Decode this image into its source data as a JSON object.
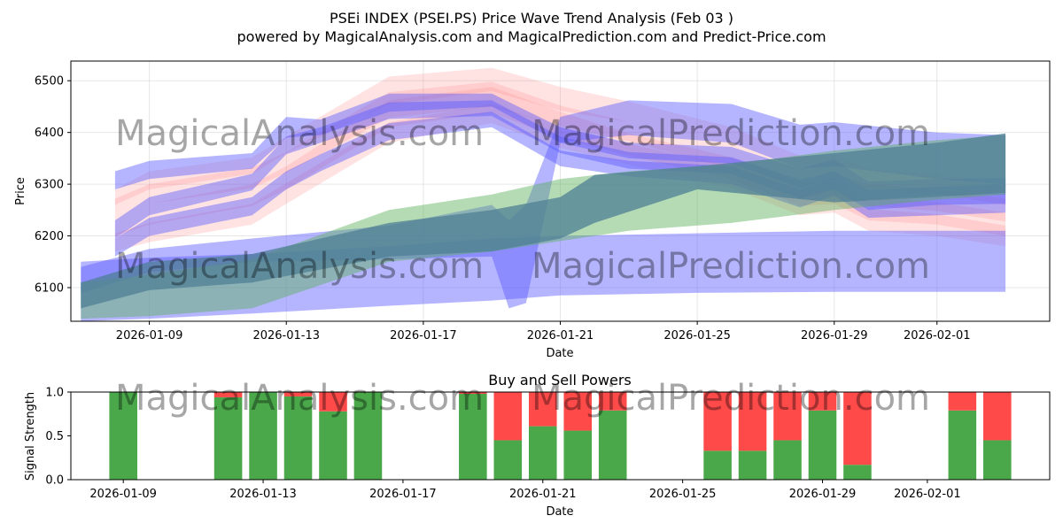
{
  "header": {
    "title": "PSEi INDEX (PSEI.PS) Price Wave Trend Analysis (Feb 03 )",
    "subtitle": "powered by MagicalAnalysis.com and MagicalPrediction.com and Predict-Price.com"
  },
  "watermarks": [
    "MagicalAnalysis.com",
    "MagicalPrediction.com"
  ],
  "colors": {
    "red_band": "#ff7f7f",
    "blue_band": "#5a5aff",
    "green_band": "#5aaf5a",
    "teal_overlap": "#4f7f95",
    "buy": "#4aa84a",
    "sell": "#ff4a4a"
  },
  "chart_data": [
    {
      "type": "area",
      "title": "",
      "xlabel": "Date",
      "ylabel": "Price",
      "xlim": [
        "2026-01-06T17:00",
        "2026-02-04T07:00"
      ],
      "ylim": [
        6035,
        6538
      ],
      "x_ticks": [
        "2026-01-09",
        "2026-01-13",
        "2026-01-17",
        "2026-01-21",
        "2026-01-25",
        "2026-01-29",
        "2026-02-01"
      ],
      "y_ticks": [
        6100,
        6200,
        6300,
        6400,
        6500
      ],
      "grid": true,
      "series": [
        {
          "name": "red wave 1",
          "color": "red",
          "x": [
            "2026-01-08",
            "2026-01-09",
            "2026-01-12",
            "2026-01-13",
            "2026-01-16",
            "2026-01-19",
            "2026-01-21",
            "2026-01-23",
            "2026-01-26",
            "2026-01-28",
            "2026-01-29",
            "2026-01-30",
            "2026-02-01",
            "2026-02-03"
          ],
          "lower": [
            6240,
            6262,
            6292,
            6322,
            6428,
            6450,
            6412,
            6383,
            6330,
            6280,
            6278,
            6258,
            6248,
            6228
          ],
          "upper": [
            6272,
            6300,
            6332,
            6362,
            6478,
            6498,
            6452,
            6420,
            6372,
            6318,
            6318,
            6300,
            6290,
            6272
          ]
        },
        {
          "name": "red wave 2",
          "color": "red",
          "x": [
            "2026-01-08",
            "2026-01-09",
            "2026-01-12",
            "2026-01-13",
            "2026-01-16",
            "2026-01-19",
            "2026-01-21",
            "2026-01-23",
            "2026-01-26",
            "2026-01-28",
            "2026-01-29",
            "2026-01-30",
            "2026-02-01",
            "2026-02-03"
          ],
          "lower": [
            6200,
            6222,
            6258,
            6290,
            6410,
            6438,
            6388,
            6355,
            6310,
            6258,
            6262,
            6230,
            6222,
            6200
          ],
          "upper": [
            6240,
            6262,
            6300,
            6335,
            6462,
            6488,
            6440,
            6398,
            6352,
            6305,
            6305,
            6275,
            6265,
            6245
          ]
        },
        {
          "name": "red wave 3",
          "color": "red",
          "x": [
            "2026-01-08",
            "2026-01-09",
            "2026-01-12",
            "2026-01-13",
            "2026-01-16",
            "2026-01-19",
            "2026-01-21",
            "2026-01-23",
            "2026-01-26",
            "2026-01-28",
            "2026-01-29",
            "2026-01-30",
            "2026-02-01",
            "2026-02-03"
          ],
          "lower": [
            6170,
            6188,
            6222,
            6262,
            6380,
            6418,
            6370,
            6338,
            6292,
            6240,
            6245,
            6210,
            6200,
            6180
          ],
          "upper": [
            6205,
            6225,
            6262,
            6302,
            6420,
            6455,
            6410,
            6378,
            6335,
            6285,
            6288,
            6252,
            6242,
            6220
          ]
        },
        {
          "name": "red wave 4",
          "color": "red",
          "x": [
            "2026-01-08",
            "2026-01-09",
            "2026-01-12",
            "2026-01-13",
            "2026-01-16",
            "2026-01-19",
            "2026-01-21",
            "2026-01-23",
            "2026-01-26",
            "2026-01-28",
            "2026-01-29",
            "2026-01-30",
            "2026-02-01",
            "2026-02-03"
          ],
          "lower": [
            6260,
            6290,
            6320,
            6360,
            6455,
            6480,
            6442,
            6420,
            6372,
            6320,
            6318,
            6290,
            6282,
            6260
          ],
          "upper": [
            6290,
            6325,
            6352,
            6392,
            6508,
            6525,
            6488,
            6460,
            6410,
            6355,
            6355,
            6330,
            6318,
            6300
          ]
        },
        {
          "name": "blue wave 1",
          "color": "blue",
          "x": [
            "2026-01-08",
            "2026-01-09",
            "2026-01-12",
            "2026-01-13",
            "2026-01-14",
            "2026-01-16",
            "2026-01-19",
            "2026-01-21",
            "2026-01-23",
            "2026-01-26",
            "2026-01-28",
            "2026-01-29",
            "2026-01-30",
            "2026-02-01",
            "2026-02-03"
          ],
          "lower": [
            6290,
            6310,
            6330,
            6390,
            6395,
            6440,
            6450,
            6380,
            6350,
            6340,
            6292,
            6310,
            6270,
            6278,
            6280
          ],
          "upper": [
            6325,
            6345,
            6360,
            6430,
            6425,
            6475,
            6475,
            6410,
            6380,
            6372,
            6330,
            6348,
            6305,
            6310,
            6312
          ]
        },
        {
          "name": "blue wave 2",
          "color": "blue",
          "x": [
            "2026-01-08",
            "2026-01-09",
            "2026-01-12",
            "2026-01-13",
            "2026-01-14",
            "2026-01-16",
            "2026-01-19",
            "2026-01-21",
            "2026-01-23",
            "2026-01-26",
            "2026-01-28",
            "2026-01-29",
            "2026-01-30",
            "2026-02-01",
            "2026-02-03"
          ],
          "lower": [
            6195,
            6240,
            6288,
            6358,
            6380,
            6426,
            6432,
            6360,
            6330,
            6320,
            6272,
            6290,
            6250,
            6260,
            6262
          ],
          "upper": [
            6230,
            6275,
            6320,
            6392,
            6410,
            6458,
            6462,
            6392,
            6362,
            6352,
            6308,
            6325,
            6288,
            6295,
            6300
          ]
        },
        {
          "name": "blue wave 3",
          "color": "blue",
          "x": [
            "2026-01-08",
            "2026-01-09",
            "2026-01-12",
            "2026-01-13",
            "2026-01-14",
            "2026-01-16",
            "2026-01-19",
            "2026-01-21",
            "2026-01-23",
            "2026-01-26",
            "2026-01-28",
            "2026-01-29",
            "2026-01-30",
            "2026-02-01",
            "2026-02-03"
          ],
          "lower": [
            6160,
            6200,
            6240,
            6290,
            6325,
            6385,
            6410,
            6335,
            6315,
            6300,
            6255,
            6278,
            6235,
            6240,
            6245
          ],
          "upper": [
            6195,
            6235,
            6275,
            6325,
            6358,
            6418,
            6440,
            6365,
            6345,
            6335,
            6290,
            6312,
            6268,
            6275,
            6282
          ]
        },
        {
          "name": "blue wave long",
          "color": "blue",
          "x": [
            "2026-01-07",
            "2026-01-09",
            "2026-01-12",
            "2026-01-16",
            "2026-01-19",
            "2026-01-19T12:00",
            "2026-01-20",
            "2026-01-21",
            "2026-01-23",
            "2026-01-26",
            "2026-01-28",
            "2026-01-29",
            "2026-02-01",
            "2026-02-03"
          ],
          "lower": [
            6090,
            6130,
            6150,
            6155,
            6160,
            6060,
            6070,
            6380,
            6395,
            6380,
            6330,
            6335,
            6310,
            6300
          ],
          "upper": [
            6140,
            6175,
            6195,
            6220,
            6260,
            6230,
            6260,
            6430,
            6462,
            6455,
            6415,
            6420,
            6400,
            6395
          ]
        },
        {
          "name": "blue base band",
          "color": "blue",
          "x": [
            "2026-01-07",
            "2026-01-09",
            "2026-01-12",
            "2026-01-16",
            "2026-01-19",
            "2026-01-21",
            "2026-01-25",
            "2026-01-29",
            "2026-02-03"
          ],
          "lower": [
            6035,
            6040,
            6050,
            6065,
            6075,
            6085,
            6090,
            6092,
            6092
          ],
          "upper": [
            6150,
            6158,
            6165,
            6180,
            6195,
            6200,
            6205,
            6210,
            6210
          ]
        },
        {
          "name": "green trend band",
          "color": "green",
          "x": [
            "2026-01-07",
            "2026-01-09",
            "2026-01-12",
            "2026-01-16",
            "2026-01-19",
            "2026-01-21",
            "2026-01-23",
            "2026-01-26",
            "2026-01-29",
            "2026-02-01",
            "2026-02-03"
          ],
          "lower": [
            6040,
            6045,
            6060,
            6150,
            6170,
            6190,
            6210,
            6225,
            6250,
            6270,
            6280
          ],
          "upper": [
            6110,
            6125,
            6155,
            6250,
            6280,
            6310,
            6325,
            6338,
            6365,
            6385,
            6395
          ]
        },
        {
          "name": "teal overlay band",
          "color": "teal",
          "x": [
            "2026-01-07",
            "2026-01-09",
            "2026-01-12",
            "2026-01-16",
            "2026-01-19",
            "2026-01-21",
            "2026-01-22",
            "2026-01-25",
            "2026-01-29",
            "2026-02-01",
            "2026-02-03"
          ],
          "lower": [
            6060,
            6095,
            6110,
            6160,
            6170,
            6195,
            6225,
            6290,
            6265,
            6275,
            6283
          ],
          "upper": [
            6110,
            6150,
            6165,
            6225,
            6250,
            6275,
            6318,
            6335,
            6360,
            6380,
            6398
          ]
        }
      ]
    },
    {
      "type": "bar",
      "title": "Buy and Sell Powers",
      "xlabel": "Date",
      "ylabel": "Signal Strength",
      "xlim": [
        "2026-01-07T12:00",
        "2026-02-04T12:00"
      ],
      "ylim": [
        0,
        1
      ],
      "x_ticks": [
        "2026-01-09",
        "2026-01-13",
        "2026-01-17",
        "2026-01-21",
        "2026-01-25",
        "2026-01-29",
        "2026-02-01"
      ],
      "y_ticks": [
        "0.0",
        "0.5",
        "1.0"
      ],
      "dates": [
        "2026-01-09",
        "2026-01-12",
        "2026-01-13",
        "2026-01-14",
        "2026-01-15",
        "2026-01-16",
        "2026-01-19",
        "2026-01-20",
        "2026-01-21",
        "2026-01-22",
        "2026-01-23",
        "2026-01-26",
        "2026-01-27",
        "2026-01-28",
        "2026-01-29",
        "2026-01-30",
        "2026-02-02",
        "2026-02-03"
      ],
      "buy": [
        1.0,
        0.94,
        1.0,
        0.95,
        0.78,
        1.0,
        0.98,
        0.45,
        0.61,
        0.56,
        0.79,
        0.33,
        0.33,
        0.45,
        0.79,
        0.17,
        0.79,
        0.45
      ],
      "sell": [
        0.0,
        0.06,
        0.0,
        0.05,
        0.22,
        0.0,
        0.02,
        0.55,
        0.39,
        0.44,
        0.21,
        0.67,
        0.67,
        0.55,
        0.21,
        0.83,
        0.21,
        0.55
      ]
    }
  ]
}
